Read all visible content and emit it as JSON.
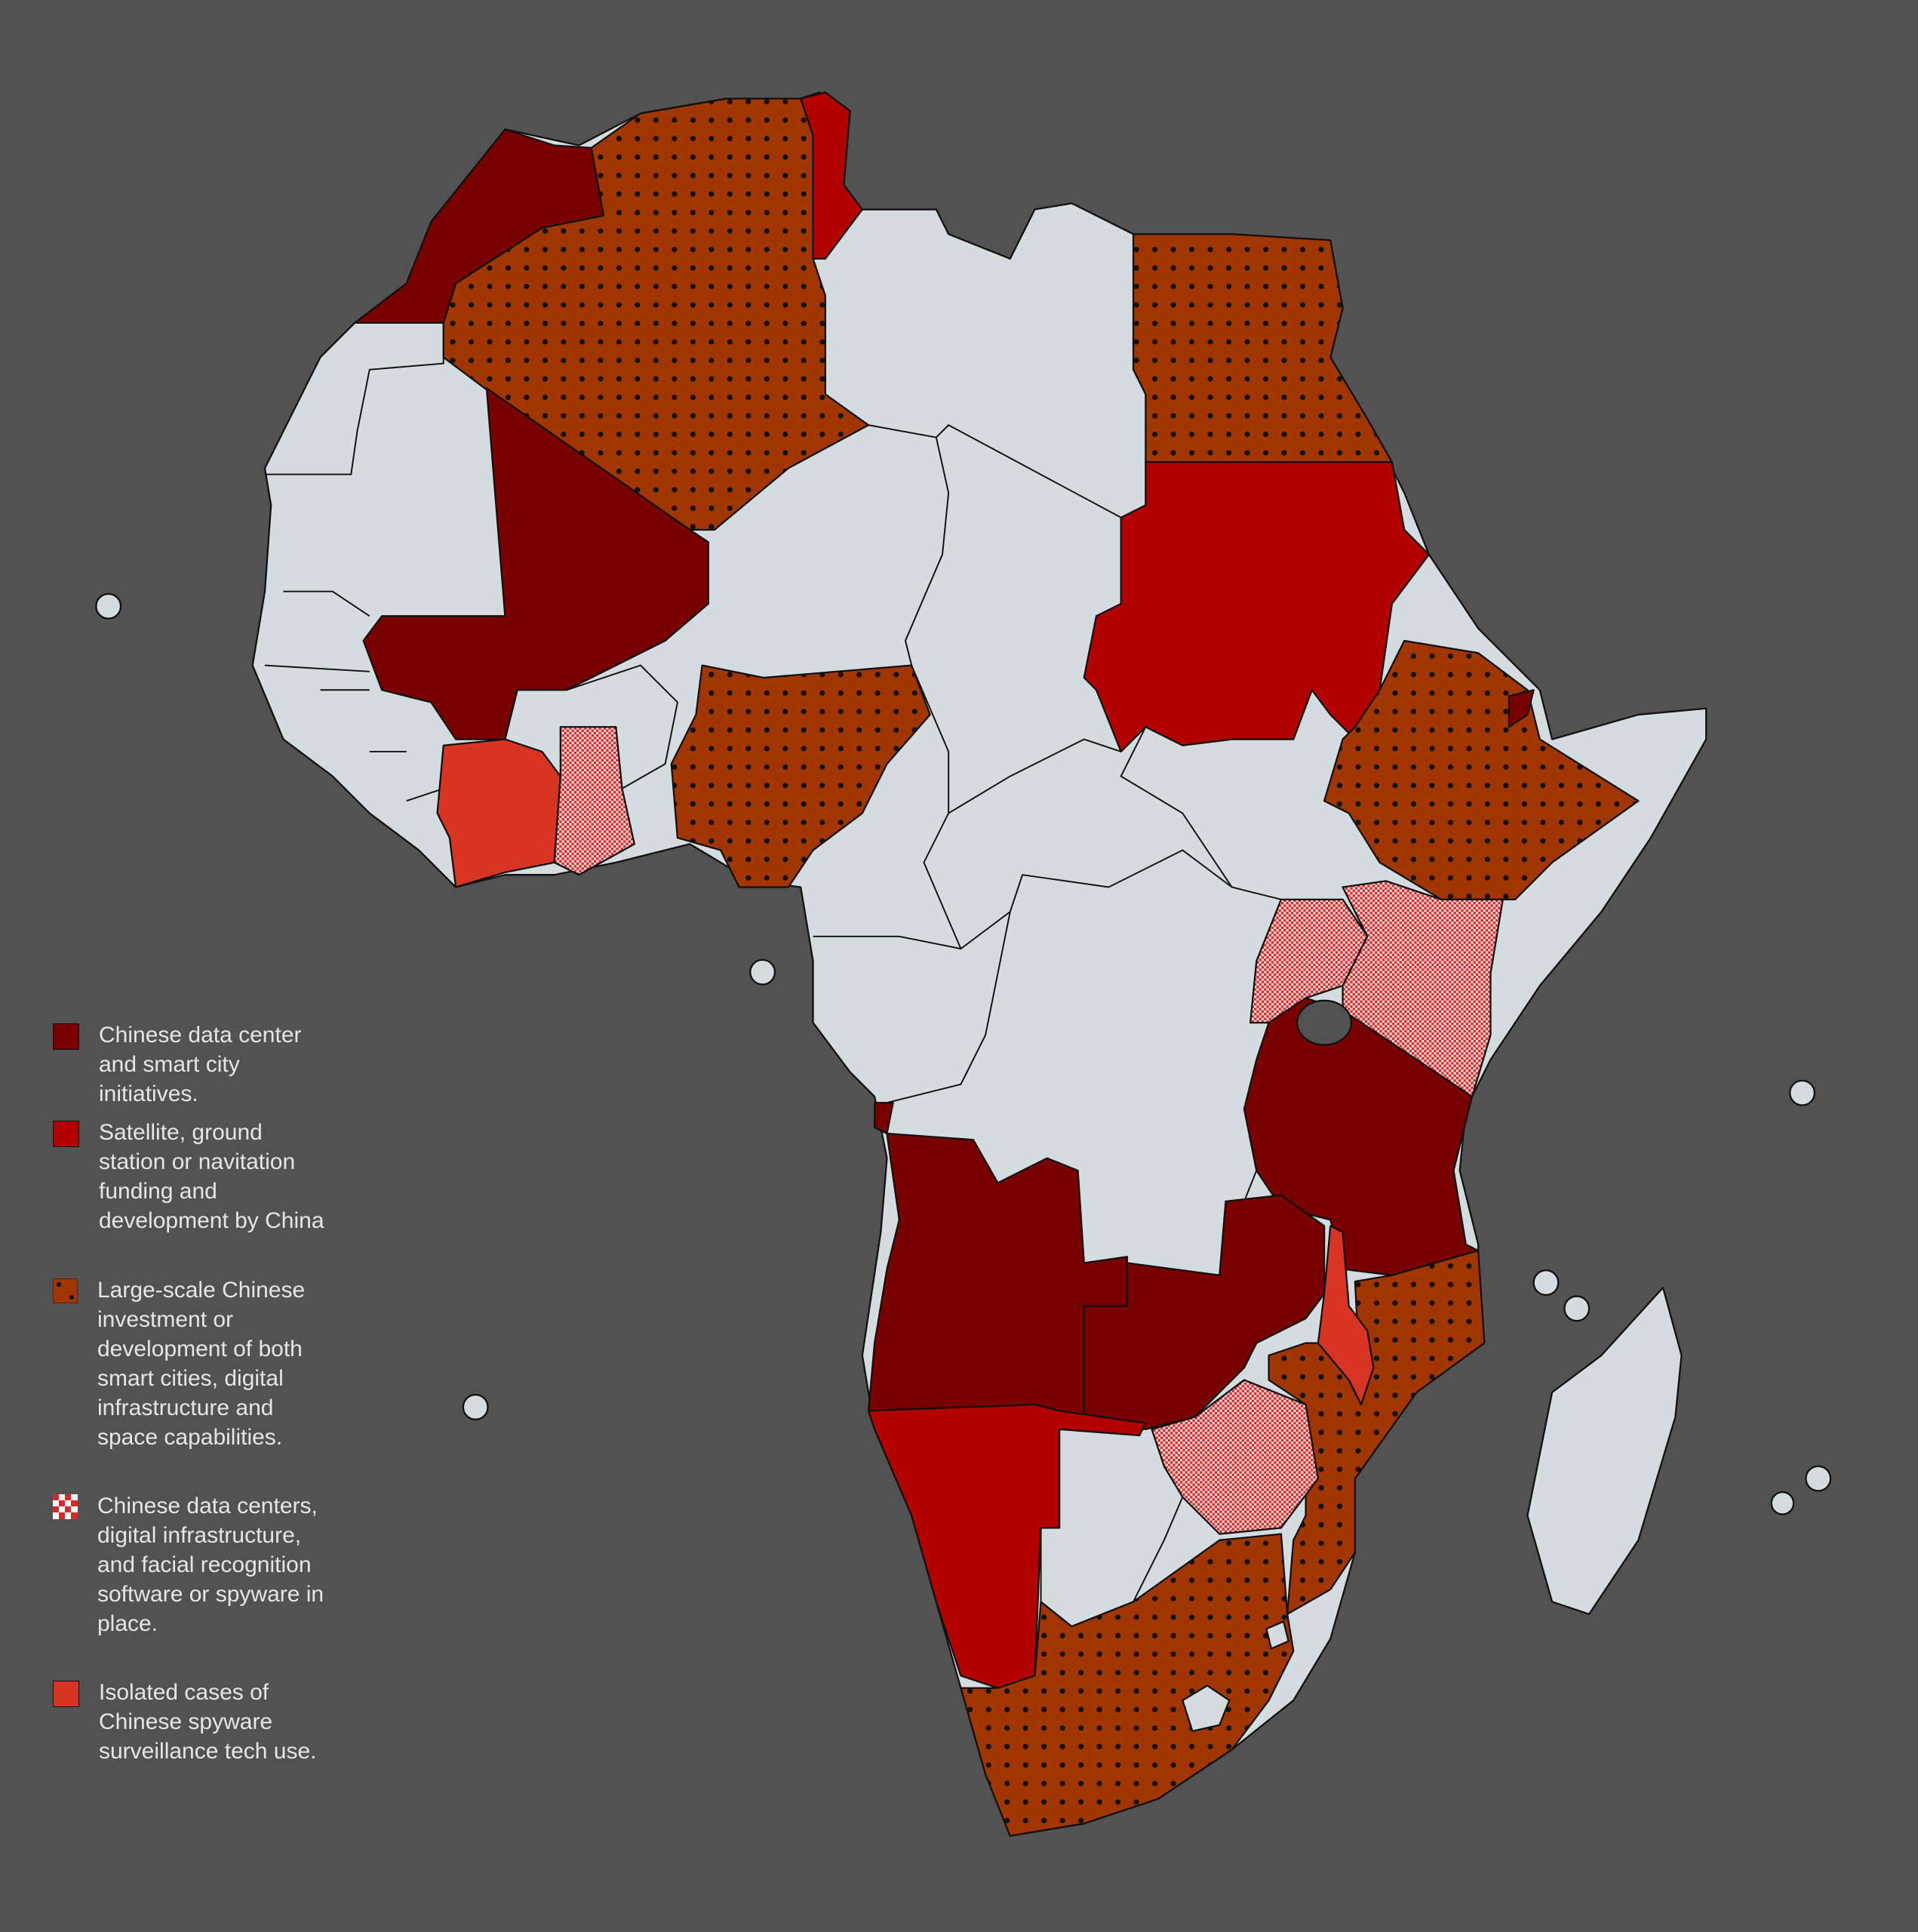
{
  "legend": [
    {
      "label": "Chinese data center and smart city initiatives."
    },
    {
      "label": "Satellite, ground station or navitation funding and development by China"
    },
    {
      "label": "Large-scale Chinese investment or development of both smart cities, digital infrastructure and space capabilities."
    },
    {
      "label": "Chinese data centers, digital infrastructure, and facial recognition software or spyware in place."
    },
    {
      "label": "Isolated cases of Chinese spyware surveillance tech use."
    }
  ]
}
